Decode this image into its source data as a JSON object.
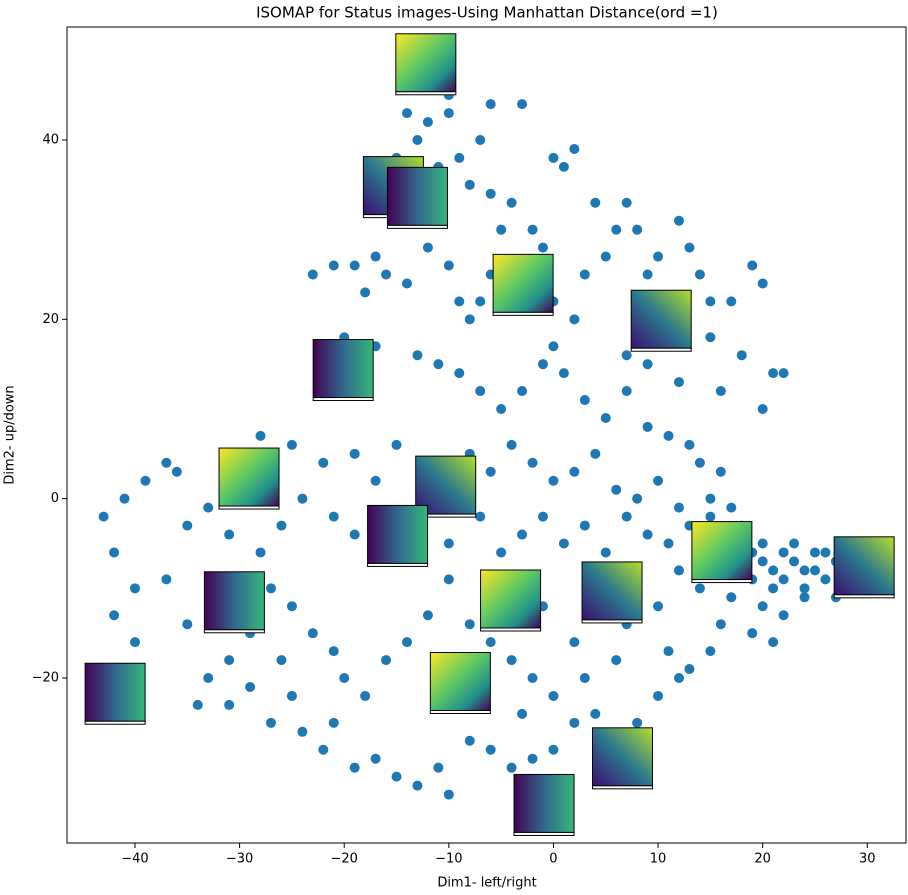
{
  "chart_data": {
    "type": "scatter",
    "title": "ISOMAP for Status images-Using Manhattan Distance(ord =1)",
    "x_label": "Dim1- left/right",
    "y_label": "Dim2- up/down",
    "xlim": [
      -46.5,
      33.7
    ],
    "ylim": [
      -38.4,
      52.6
    ],
    "xticks": [
      {
        "value": -40,
        "label": "−40"
      },
      {
        "value": -30,
        "label": "−30"
      },
      {
        "value": -20,
        "label": "−20"
      },
      {
        "value": -10,
        "label": "−10"
      },
      0,
      10,
      20,
      30
    ],
    "yticks": [
      {
        "value": -20,
        "label": "−20"
      },
      0,
      20,
      40
    ],
    "series": [
      {
        "color": "#1f77b4",
        "x": [
          -12,
          -14,
          -13,
          -15,
          -10,
          -10,
          -6,
          -3,
          -7,
          -9,
          -11,
          -8,
          -6,
          -4,
          -2,
          -5,
          0,
          1,
          2,
          4,
          -17,
          -19,
          -21,
          -23,
          -16,
          -18,
          -14,
          -12,
          -10,
          -9,
          -7,
          -8,
          -6,
          -4,
          -1,
          0,
          2,
          3,
          5,
          6,
          7,
          8,
          9,
          10,
          12,
          13,
          14,
          15,
          17,
          19,
          20,
          18,
          15,
          12,
          16,
          21,
          22,
          20,
          9,
          7,
          -20,
          -22,
          -17,
          -13,
          -11,
          -9,
          -7,
          -5,
          -3,
          -1,
          0,
          1,
          3,
          5,
          7,
          9,
          11,
          13,
          14,
          16,
          -25,
          -28,
          -22,
          -19,
          -17,
          -15,
          -12,
          -8,
          -6,
          -4,
          -2,
          0,
          2,
          4,
          6,
          8,
          10,
          12,
          15,
          17,
          -36,
          -37,
          -39,
          -41,
          -43,
          -42,
          -35,
          -33,
          -31,
          -28,
          -26,
          -24,
          -21,
          -19,
          -17,
          -13,
          -10,
          -7,
          -5,
          -3,
          -1,
          1,
          3,
          5,
          7,
          9,
          11,
          13,
          15,
          18,
          19,
          20,
          21,
          22,
          23,
          24,
          25,
          26,
          27,
          28,
          19,
          20,
          21,
          22,
          23,
          24,
          25,
          26,
          27,
          29,
          18,
          20,
          22,
          24,
          19,
          21,
          17,
          16,
          15,
          13,
          -40,
          -42,
          -40,
          -37,
          -35,
          -33,
          -31,
          -29,
          -27,
          -25,
          -24,
          -22,
          -21,
          -19,
          -17,
          -15,
          -13,
          -11,
          -10,
          -8,
          -6,
          -4,
          -2,
          0,
          2,
          4,
          8,
          10,
          12,
          11,
          -25,
          -23,
          -21,
          -20,
          -18,
          -16,
          -14,
          -12,
          -10,
          -8,
          -6,
          -4,
          -2,
          0,
          2,
          4,
          6,
          8,
          10,
          12,
          -29,
          -27,
          -31,
          -34,
          -26,
          -3,
          -1,
          3,
          7,
          14
        ],
        "values": [
          42,
          43,
          40,
          38,
          45,
          43,
          44,
          44,
          40,
          38,
          37,
          35,
          34,
          33,
          30,
          30,
          38,
          37,
          39,
          33,
          27,
          26,
          26,
          25,
          25,
          23,
          24,
          28,
          26,
          22,
          22,
          20,
          25,
          26,
          28,
          22,
          20,
          25,
          27,
          30,
          33,
          30,
          25,
          27,
          31,
          28,
          25,
          22,
          22,
          26,
          24,
          16,
          18,
          13,
          12,
          14,
          14,
          10,
          15,
          16,
          18,
          16,
          17,
          16,
          15,
          14,
          12,
          10,
          12,
          15,
          17,
          14,
          11,
          9,
          12,
          8,
          7,
          6,
          4,
          3,
          6,
          7,
          4,
          5,
          2,
          6,
          3,
          5,
          3,
          6,
          4,
          2,
          3,
          5,
          1,
          0,
          2,
          -1,
          0,
          -1,
          3,
          4,
          2,
          0,
          -2,
          -6,
          -3,
          -1,
          -4,
          -6,
          -3,
          0,
          -2,
          -4,
          -6,
          -3,
          -5,
          -2,
          -6,
          -4,
          -2,
          -5,
          -3,
          -6,
          -2,
          -4,
          -5,
          -3,
          -2,
          -3,
          -6,
          -7,
          -8,
          -6,
          -7,
          -8,
          -6,
          -9,
          -7,
          -10,
          -9,
          -5,
          -10,
          -9,
          -5,
          -10,
          -8,
          -6,
          -11,
          -8,
          -8,
          -12,
          -13,
          -11,
          -15,
          -16,
          -11,
          -14,
          -17,
          -19,
          -10,
          -13,
          -16,
          -9,
          -14,
          -20,
          -23,
          -21,
          -25,
          -22,
          -26,
          -28,
          -25,
          -30,
          -29,
          -31,
          -32,
          -30,
          -33,
          -27,
          -28,
          -30,
          -29,
          -28,
          -25,
          -24,
          -25,
          -22,
          -20,
          -17,
          -12,
          -15,
          -17,
          -20,
          -22,
          -18,
          -16,
          -13,
          -9,
          -14,
          -16,
          -18,
          -20,
          -22,
          -16,
          -13,
          -18,
          -9,
          -12,
          -8,
          -15,
          -10,
          -18,
          -23,
          -18,
          -24,
          -12,
          -20,
          -14,
          -10
        ]
      }
    ],
    "images": {
      "x": [
        -12.2,
        -15.3,
        -13.0,
        -2.9,
        10.3,
        -20.1,
        -29.1,
        -10.3,
        -14.9,
        16.1,
        29.7,
        -30.5,
        -4.1,
        5.6,
        -41.9,
        -8.9,
        6.6,
        -0.9
      ],
      "y": [
        48.5,
        34.8,
        33.6,
        23.9,
        19.9,
        14.4,
        2.3,
        1.4,
        -4.1,
        -5.9,
        -7.6,
        -11.5,
        -11.3,
        -10.4,
        -21.7,
        -20.5,
        -28.9,
        -34.1
      ]
    }
  }
}
